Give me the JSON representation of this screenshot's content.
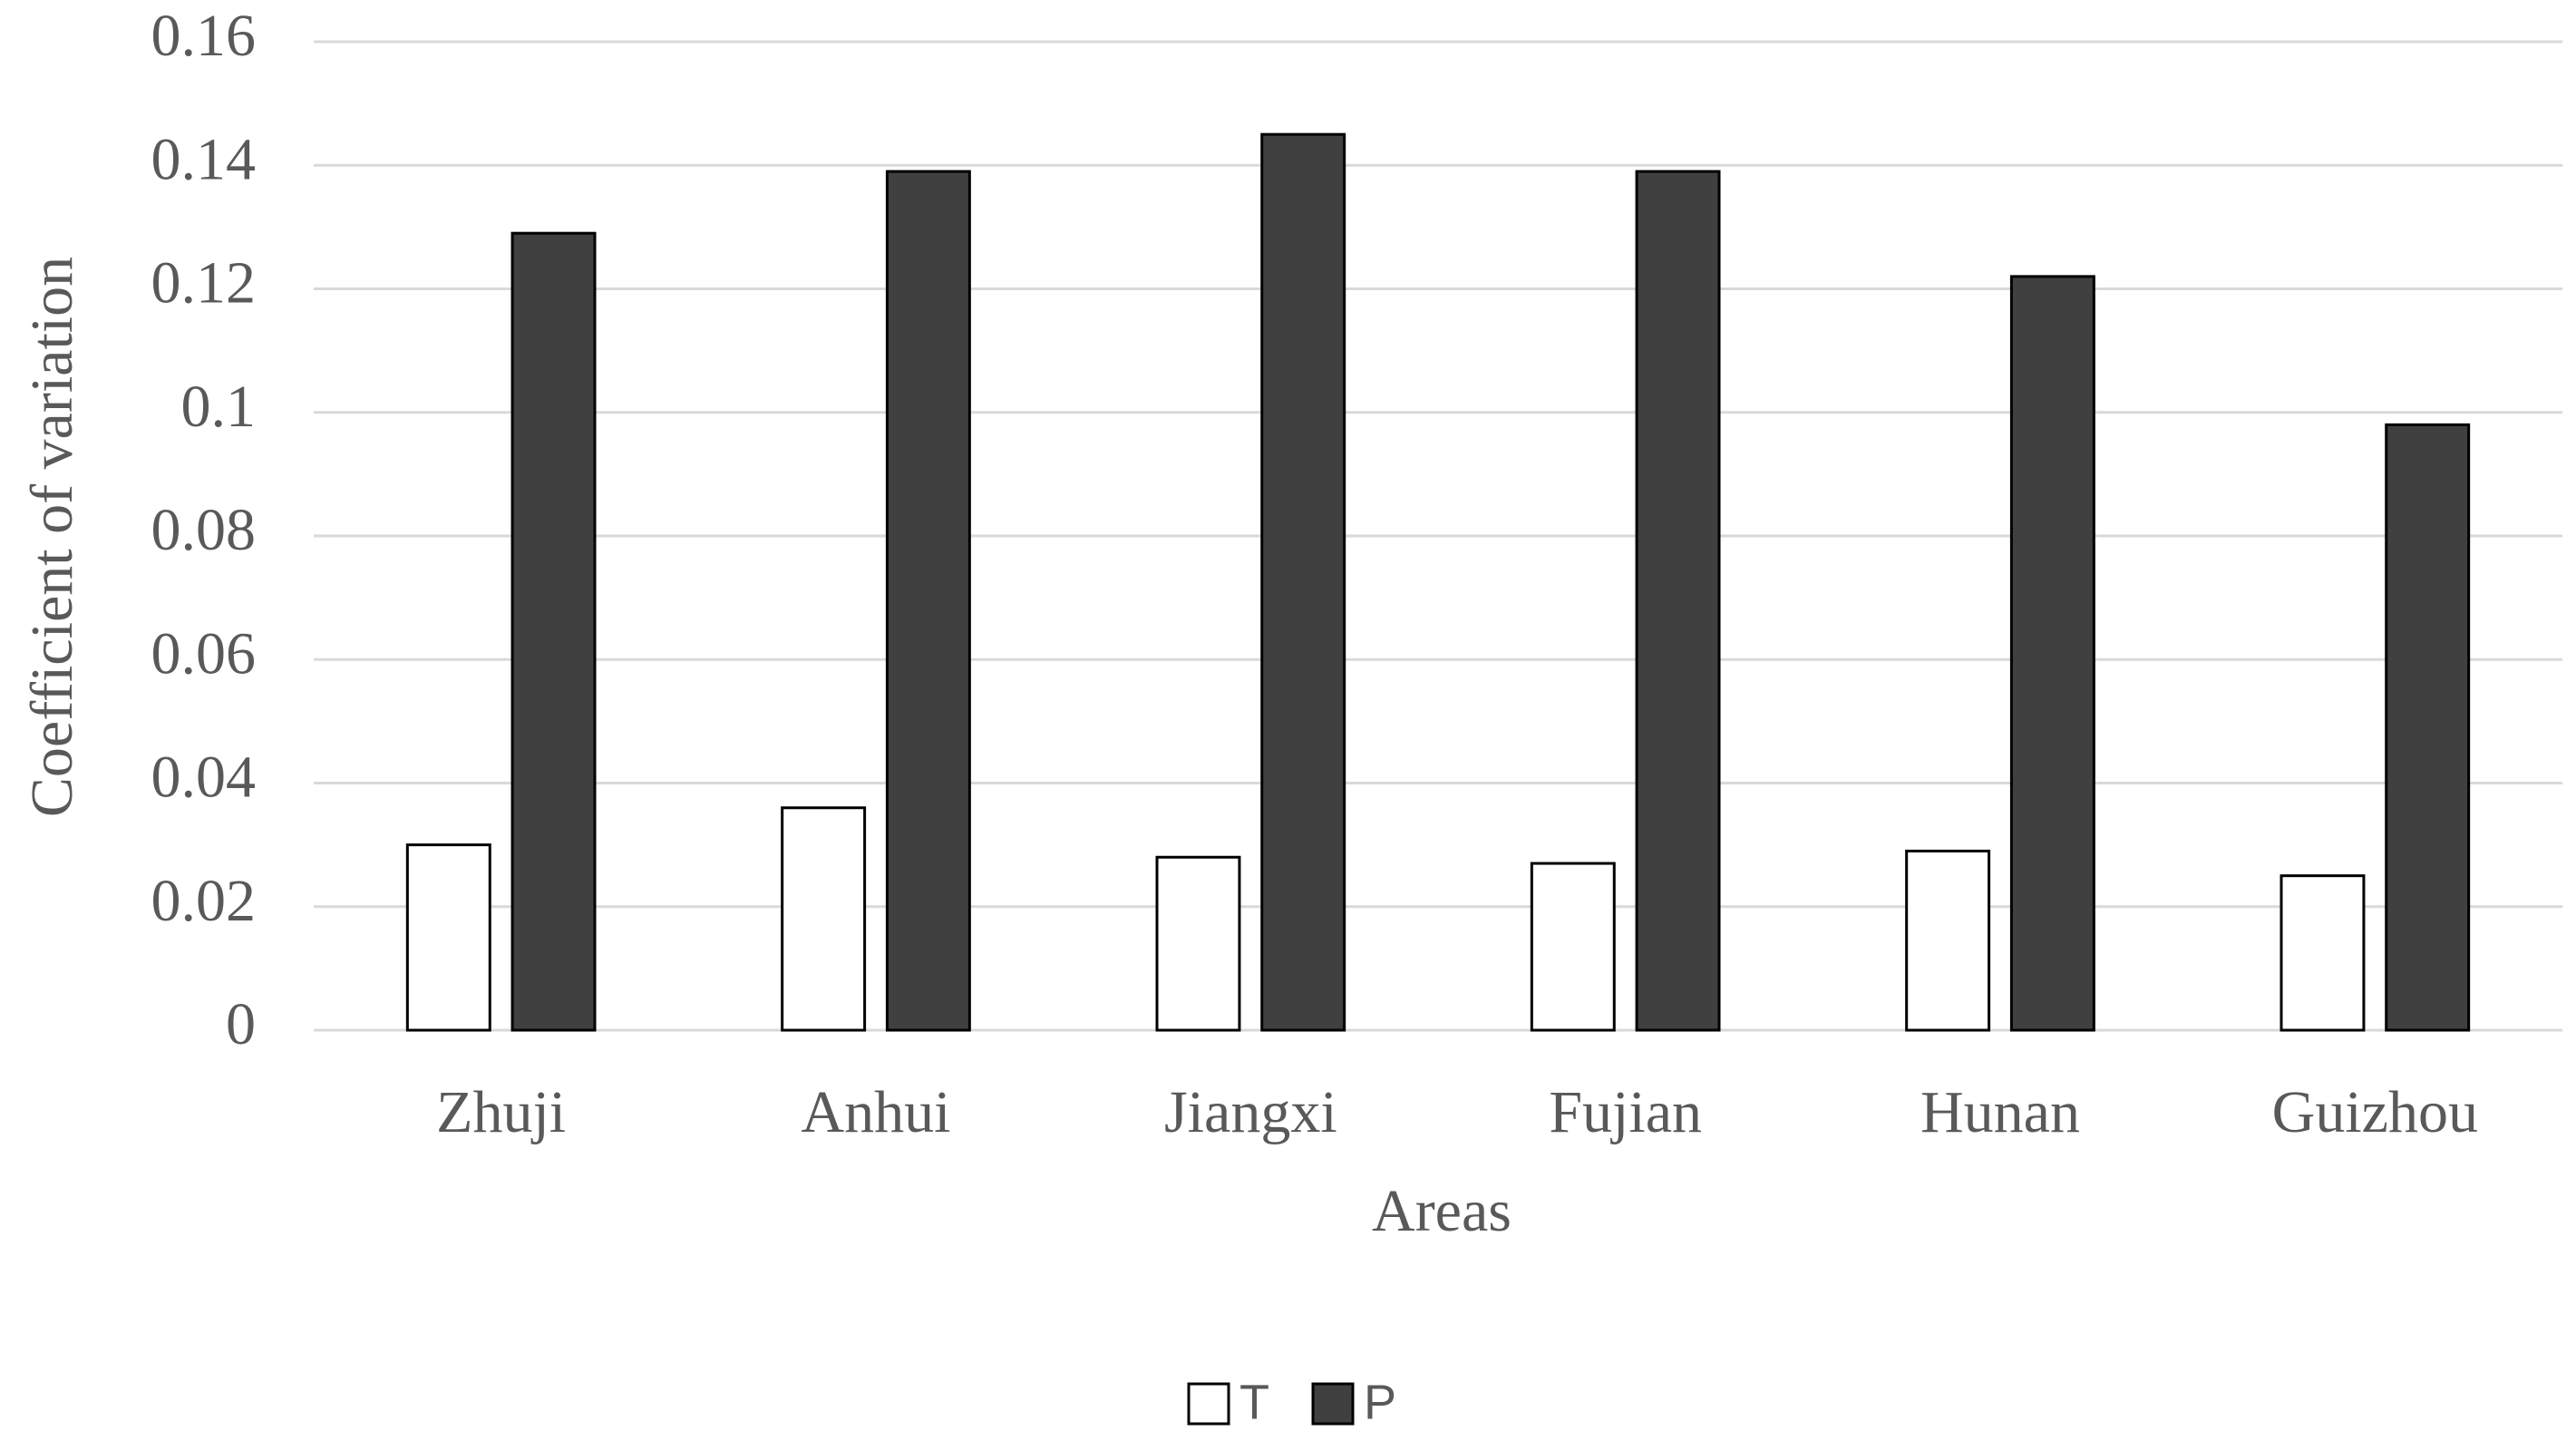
{
  "chart_data": {
    "type": "bar",
    "x_label": "Areas",
    "y_label": "Coefficient of variation",
    "categories": [
      "Zhuji",
      "Anhui",
      "Jiangxi",
      "Fujian",
      "Hunan",
      "Guizhou"
    ],
    "series": [
      {
        "name": "T",
        "color": "#ffffff",
        "values": [
          0.03,
          0.036,
          0.028,
          0.027,
          0.029,
          0.025
        ]
      },
      {
        "name": "P",
        "color": "#404040",
        "values": [
          0.129,
          0.139,
          0.145,
          0.139,
          0.122,
          0.098
        ]
      }
    ],
    "ylim": [
      0,
      0.16
    ],
    "yticks": [
      0,
      0.02,
      0.04,
      0.06,
      0.08,
      0.1,
      0.12,
      0.14,
      0.16
    ],
    "grid": true,
    "legend": "bottom"
  }
}
